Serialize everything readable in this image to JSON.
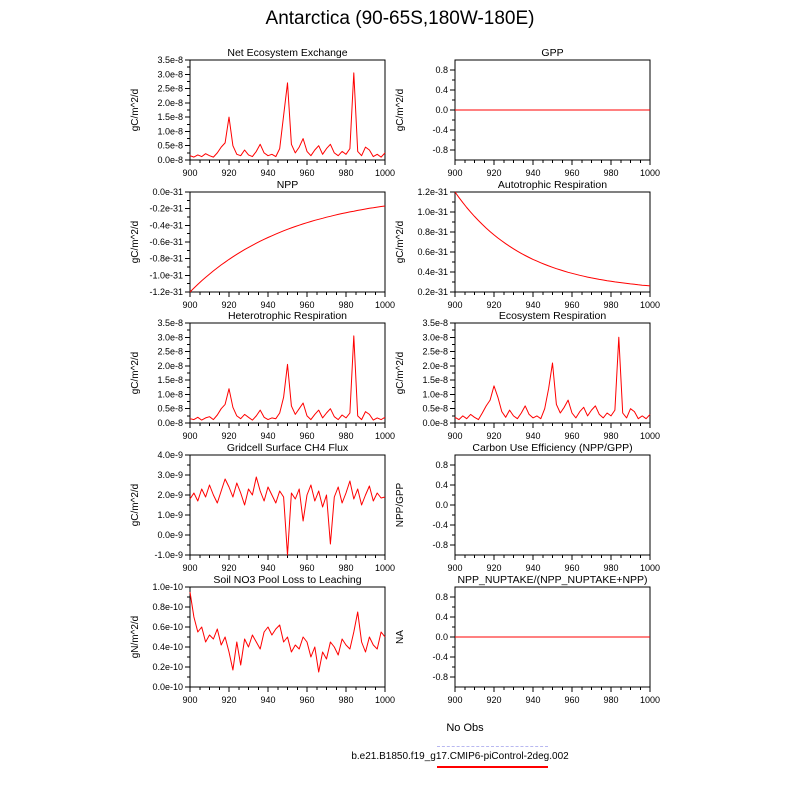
{
  "page_title": "Antarctica (90-65S,180W-180E)",
  "style": {
    "line_color": "#ff0000",
    "frame_color": "#000000",
    "no_obs_dash_color": "#b8b8f0"
  },
  "legend": {
    "no_obs": "No Obs",
    "case_name": "b.e21.B1850.f19_g17.CMIP6-piControl-2deg.002",
    "case_color": "#ff0000"
  },
  "chart_data": [
    {
      "type": "line",
      "title": "Net Ecosystem Exchange",
      "ylabel": "gC/m^2/d",
      "xticks": [
        900,
        920,
        940,
        960,
        980,
        1000
      ],
      "ylim": [
        0,
        3.5
      ],
      "ytick_vals": [
        0,
        0.5,
        1.0,
        1.5,
        2.0,
        2.5,
        3.0,
        3.5
      ],
      "ytick_labels": [
        "0.0e-8",
        "0.5e-8",
        "1.0e-8",
        "1.5e-8",
        "2.0e-8",
        "2.5e-8",
        "3.0e-8",
        "3.5e-8"
      ],
      "value_scale": "1e-8",
      "x_start": 900,
      "x_step": 2,
      "values": [
        0.15,
        0.1,
        0.18,
        0.12,
        0.22,
        0.15,
        0.1,
        0.25,
        0.45,
        0.6,
        1.5,
        0.5,
        0.2,
        0.15,
        0.35,
        0.18,
        0.12,
        0.3,
        0.55,
        0.25,
        0.15,
        0.2,
        0.12,
        0.4,
        1.55,
        2.7,
        0.55,
        0.25,
        0.45,
        0.75,
        0.3,
        0.15,
        0.35,
        0.5,
        0.2,
        0.4,
        0.55,
        0.25,
        0.15,
        0.3,
        0.2,
        0.4,
        3.05,
        0.3,
        0.15,
        0.45,
        0.35,
        0.12,
        0.2,
        0.1,
        0.25
      ]
    },
    {
      "type": "line",
      "title": "GPP",
      "ylabel": "gC/m^2/d",
      "xticks": [
        900,
        920,
        940,
        960,
        980,
        1000
      ],
      "ylim": [
        -1.0,
        1.0
      ],
      "ytick_vals": [
        -0.8,
        -0.4,
        0,
        0.4,
        0.8
      ],
      "ytick_labels": [
        "-0.8",
        "-0.4",
        "0.0",
        "0.4",
        "0.8"
      ],
      "value_scale": "1",
      "x": [
        900,
        1000
      ],
      "values": [
        0,
        0
      ]
    },
    {
      "type": "line",
      "title": "NPP",
      "ylabel": "gC/m^2/d",
      "xticks": [
        900,
        920,
        940,
        960,
        980,
        1000
      ],
      "ylim": [
        -1.2,
        0
      ],
      "ytick_vals": [
        0,
        -0.2,
        -0.4,
        -0.6,
        -0.8,
        -1.0,
        -1.2
      ],
      "ytick_labels": [
        "0.0e-31",
        "-0.2e-31",
        "-0.4e-31",
        "-0.6e-31",
        "-0.8e-31",
        "-1.0e-31",
        "-1.2e-31"
      ],
      "value_scale": "1e-31",
      "x_start": 900,
      "x_step": 2,
      "values": [
        -1.2,
        -1.153,
        -1.109,
        -1.066,
        -1.025,
        -0.985,
        -0.947,
        -0.911,
        -0.875,
        -0.842,
        -0.809,
        -0.778,
        -0.748,
        -0.719,
        -0.691,
        -0.665,
        -0.639,
        -0.614,
        -0.59,
        -0.568,
        -0.546,
        -0.525,
        -0.505,
        -0.485,
        -0.466,
        -0.448,
        -0.431,
        -0.414,
        -0.398,
        -0.383,
        -0.368,
        -0.354,
        -0.34,
        -0.327,
        -0.315,
        -0.302,
        -0.291,
        -0.28,
        -0.269,
        -0.258,
        -0.248,
        -0.239,
        -0.23,
        -0.221,
        -0.212,
        -0.204,
        -0.196,
        -0.189,
        -0.181,
        -0.174,
        -0.168
      ]
    },
    {
      "type": "line",
      "title": "Autotrophic Respiration",
      "ylabel": "gC/m^2/d",
      "xticks": [
        900,
        920,
        940,
        960,
        980,
        1000
      ],
      "ylim": [
        0.2,
        1.2
      ],
      "ytick_vals": [
        0.2,
        0.4,
        0.6,
        0.8,
        1.0,
        1.2
      ],
      "ytick_labels": [
        "0.2e-31",
        "0.4e-31",
        "0.6e-31",
        "0.8e-31",
        "1.0e-31",
        "1.2e-31"
      ],
      "value_scale": "1e-31",
      "x_start": 900,
      "x_step": 2,
      "values": [
        1.2,
        1.146,
        1.094,
        1.045,
        0.999,
        0.956,
        0.915,
        0.876,
        0.839,
        0.804,
        0.771,
        0.74,
        0.711,
        0.683,
        0.657,
        0.632,
        0.608,
        0.586,
        0.565,
        0.545,
        0.526,
        0.509,
        0.492,
        0.476,
        0.461,
        0.447,
        0.433,
        0.421,
        0.409,
        0.397,
        0.387,
        0.377,
        0.367,
        0.358,
        0.349,
        0.341,
        0.334,
        0.326,
        0.32,
        0.313,
        0.307,
        0.301,
        0.296,
        0.291,
        0.286,
        0.281,
        0.277,
        0.272,
        0.268,
        0.265,
        0.261
      ]
    },
    {
      "type": "line",
      "title": "Heterotrophic Respiration",
      "ylabel": "gC/m^2/d",
      "xticks": [
        900,
        920,
        940,
        960,
        980,
        1000
      ],
      "ylim": [
        0,
        3.5
      ],
      "ytick_vals": [
        0,
        0.5,
        1.0,
        1.5,
        2.0,
        2.5,
        3.0,
        3.5
      ],
      "ytick_labels": [
        "0.0e-8",
        "0.5e-8",
        "1.0e-8",
        "1.5e-8",
        "2.0e-8",
        "2.5e-8",
        "3.0e-8",
        "3.5e-8"
      ],
      "value_scale": "1e-8",
      "x_start": 900,
      "x_step": 2,
      "values": [
        0.15,
        0.12,
        0.2,
        0.1,
        0.18,
        0.22,
        0.12,
        0.28,
        0.5,
        0.65,
        1.2,
        0.55,
        0.25,
        0.15,
        0.3,
        0.2,
        0.1,
        0.25,
        0.45,
        0.2,
        0.12,
        0.18,
        0.15,
        0.35,
        0.9,
        2.05,
        0.6,
        0.3,
        0.5,
        0.7,
        0.25,
        0.12,
        0.3,
        0.45,
        0.18,
        0.35,
        0.5,
        0.22,
        0.12,
        0.28,
        0.18,
        0.35,
        3.05,
        0.25,
        0.12,
        0.4,
        0.3,
        0.1,
        0.18,
        0.12,
        0.2
      ]
    },
    {
      "type": "line",
      "title": "Ecosystem Respiration",
      "ylabel": "gC/m^2/d",
      "xticks": [
        900,
        920,
        940,
        960,
        980,
        1000
      ],
      "ylim": [
        0,
        3.5
      ],
      "ytick_vals": [
        0,
        0.5,
        1.0,
        1.5,
        2.0,
        2.5,
        3.0,
        3.5
      ],
      "ytick_labels": [
        "0.0e-8",
        "0.5e-8",
        "1.0e-8",
        "1.5e-8",
        "2.0e-8",
        "2.5e-8",
        "3.0e-8",
        "3.5e-8"
      ],
      "value_scale": "1e-8",
      "x_start": 900,
      "x_step": 2,
      "values": [
        0.2,
        0.12,
        0.25,
        0.15,
        0.3,
        0.2,
        0.12,
        0.35,
        0.6,
        0.8,
        1.3,
        0.9,
        0.4,
        0.2,
        0.45,
        0.25,
        0.15,
        0.35,
        0.6,
        0.3,
        0.18,
        0.25,
        0.15,
        0.5,
        1.2,
        2.1,
        0.65,
        0.35,
        0.55,
        0.8,
        0.35,
        0.18,
        0.4,
        0.55,
        0.25,
        0.45,
        0.6,
        0.3,
        0.18,
        0.35,
        0.25,
        0.45,
        3.0,
        0.35,
        0.18,
        0.5,
        0.4,
        0.15,
        0.25,
        0.15,
        0.3
      ]
    },
    {
      "type": "line",
      "title": "Gridcell Surface CH4 Flux",
      "ylabel": "gC/m^2/d",
      "xticks": [
        900,
        920,
        940,
        960,
        980,
        1000
      ],
      "ylim": [
        -1.0,
        4.0
      ],
      "ytick_vals": [
        -1.0,
        0,
        1.0,
        2.0,
        3.0,
        4.0
      ],
      "ytick_labels": [
        "-1.0e-9",
        "0.0e-9",
        "1.0e-9",
        "2.0e-9",
        "3.0e-9",
        "4.0e-9"
      ],
      "value_scale": "1e-9",
      "x_start": 900,
      "x_step": 2,
      "values": [
        1.8,
        2.1,
        1.7,
        2.3,
        1.9,
        2.5,
        2.0,
        1.6,
        2.2,
        2.8,
        2.4,
        1.9,
        2.6,
        2.1,
        1.5,
        2.3,
        2.0,
        2.9,
        2.2,
        1.7,
        2.4,
        2.0,
        1.6,
        2.2,
        1.9,
        -1.0,
        2.1,
        1.8,
        2.3,
        0.7,
        2.0,
        2.5,
        1.7,
        2.2,
        1.4,
        2.0,
        -0.45,
        1.9,
        2.4,
        1.6,
        2.1,
        2.7,
        1.8,
        2.3,
        1.5,
        2.0,
        2.45,
        1.7,
        2.1,
        1.85,
        1.9
      ]
    },
    {
      "type": "line",
      "title": "Carbon Use Efficiency (NPP/GPP)",
      "ylabel": "NPP/GPP",
      "xticks": [
        900,
        920,
        940,
        960,
        980,
        1000
      ],
      "ylim": [
        -1.0,
        1.0
      ],
      "ytick_vals": [
        -0.8,
        -0.4,
        0,
        0.4,
        0.8
      ],
      "ytick_labels": [
        "-0.8",
        "-0.4",
        "0.0",
        "0.4",
        "0.8"
      ],
      "value_scale": "1",
      "x": [],
      "values": []
    },
    {
      "type": "line",
      "title": "Soil NO3 Pool Loss to Leaching",
      "ylabel": "gN/m^2/d",
      "xticks": [
        900,
        920,
        940,
        960,
        980,
        1000
      ],
      "ylim": [
        0,
        1.0
      ],
      "ytick_vals": [
        0,
        0.2,
        0.4,
        0.6,
        0.8,
        1.0
      ],
      "ytick_labels": [
        "0.0e-10",
        "0.2e-10",
        "0.4e-10",
        "0.6e-10",
        "0.8e-10",
        "1.0e-10"
      ],
      "value_scale": "1e-10",
      "x_start": 900,
      "x_step": 2,
      "values": [
        0.95,
        0.7,
        0.55,
        0.6,
        0.45,
        0.52,
        0.48,
        0.58,
        0.42,
        0.5,
        0.35,
        0.17,
        0.45,
        0.22,
        0.48,
        0.4,
        0.52,
        0.45,
        0.38,
        0.55,
        0.6,
        0.52,
        0.58,
        0.62,
        0.45,
        0.5,
        0.35,
        0.42,
        0.38,
        0.5,
        0.45,
        0.3,
        0.4,
        0.15,
        0.35,
        0.28,
        0.45,
        0.4,
        0.32,
        0.48,
        0.42,
        0.38,
        0.55,
        0.75,
        0.45,
        0.35,
        0.5,
        0.42,
        0.38,
        0.55,
        0.5
      ]
    },
    {
      "type": "line",
      "title": "NPP_NUPTAKE/(NPP_NUPTAKE+NPP)",
      "ylabel": "NA",
      "xticks": [
        900,
        920,
        940,
        960,
        980,
        1000
      ],
      "ylim": [
        -1.0,
        1.0
      ],
      "ytick_vals": [
        -0.8,
        -0.4,
        0,
        0.4,
        0.8
      ],
      "ytick_labels": [
        "-0.8",
        "-0.4",
        "0.0",
        "0.4",
        "0.8"
      ],
      "value_scale": "1",
      "x": [
        900,
        1000
      ],
      "values": [
        0,
        0
      ]
    }
  ]
}
